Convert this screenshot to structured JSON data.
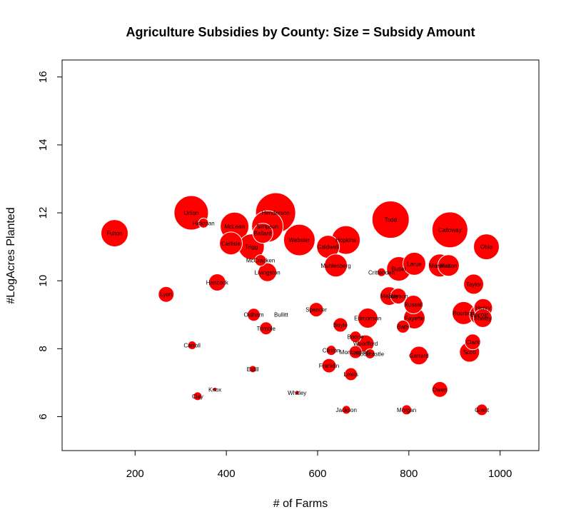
{
  "chart_data": {
    "type": "scatter",
    "title": "Agriculture Subsidies by County: Size = Subsidy Amount",
    "xlabel": "# of Farms",
    "ylabel": "#LogAcres Planted",
    "xlim": [
      40,
      1085
    ],
    "ylim": [
      5,
      16.5
    ],
    "xticks": [
      200,
      400,
      600,
      800,
      1000
    ],
    "yticks": [
      6,
      8,
      10,
      12,
      14,
      16
    ],
    "grid": false,
    "marker_color": "#ff0000",
    "marker_edge_color": "#ffffff",
    "size_encodes": "Subsidy Amount",
    "points": [
      {
        "label": "Fulton",
        "x": 155,
        "y": 11.4,
        "size": 19
      },
      {
        "label": "Union",
        "x": 323,
        "y": 12.0,
        "size": 24
      },
      {
        "label": "Henderson",
        "x": 508,
        "y": 12.0,
        "size": 28
      },
      {
        "label": "Hickman",
        "x": 350,
        "y": 11.7,
        "size": 7
      },
      {
        "label": "McLean",
        "x": 418,
        "y": 11.6,
        "size": 20
      },
      {
        "label": "Simpson",
        "x": 490,
        "y": 11.6,
        "size": 22
      },
      {
        "label": "Ballard",
        "x": 480,
        "y": 11.4,
        "size": 14
      },
      {
        "label": "Webster",
        "x": 560,
        "y": 11.2,
        "size": 22
      },
      {
        "label": "Carlisle",
        "x": 410,
        "y": 11.1,
        "size": 16
      },
      {
        "label": "Trigg",
        "x": 455,
        "y": 11.0,
        "size": 18
      },
      {
        "label": "Caldwell",
        "x": 623,
        "y": 11.0,
        "size": 16
      },
      {
        "label": "Hopkins",
        "x": 662,
        "y": 11.2,
        "size": 20
      },
      {
        "label": "Todd",
        "x": 760,
        "y": 11.8,
        "size": 26
      },
      {
        "label": "Calloway",
        "x": 890,
        "y": 11.5,
        "size": 25
      },
      {
        "label": "Ohio",
        "x": 970,
        "y": 11.0,
        "size": 18
      },
      {
        "label": "McCracken",
        "x": 475,
        "y": 10.6,
        "size": 8
      },
      {
        "label": "Muhlenberg",
        "x": 640,
        "y": 10.45,
        "size": 16
      },
      {
        "label": "Butler",
        "x": 778,
        "y": 10.35,
        "size": 17
      },
      {
        "label": "Larue",
        "x": 812,
        "y": 10.5,
        "size": 16
      },
      {
        "label": "Marshall",
        "x": 868,
        "y": 10.45,
        "size": 16
      },
      {
        "label": "Mason",
        "x": 887,
        "y": 10.45,
        "size": 15
      },
      {
        "label": "Crittenden",
        "x": 740,
        "y": 10.25,
        "size": 6
      },
      {
        "label": "Livingston",
        "x": 490,
        "y": 10.25,
        "size": 13
      },
      {
        "label": "Hancock",
        "x": 380,
        "y": 9.95,
        "size": 12
      },
      {
        "label": "Taylor",
        "x": 942,
        "y": 9.9,
        "size": 14
      },
      {
        "label": "Lyon",
        "x": 268,
        "y": 9.6,
        "size": 11
      },
      {
        "label": "Meade",
        "x": 757,
        "y": 9.55,
        "size": 13
      },
      {
        "label": "Rayson",
        "x": 777,
        "y": 9.55,
        "size": 11
      },
      {
        "label": "Russell",
        "x": 810,
        "y": 9.3,
        "size": 13
      },
      {
        "label": "Spencer",
        "x": 597,
        "y": 9.15,
        "size": 10
      },
      {
        "label": "Henry",
        "x": 963,
        "y": 9.2,
        "size": 13
      },
      {
        "label": "Oldham",
        "x": 460,
        "y": 9.0,
        "size": 9
      },
      {
        "label": "Bullitt",
        "x": 520,
        "y": 9.0,
        "size": 0
      },
      {
        "label": "Edmonson",
        "x": 710,
        "y": 8.9,
        "size": 14
      },
      {
        "label": "Fayette",
        "x": 812,
        "y": 8.9,
        "size": 15
      },
      {
        "label": "Bourbon",
        "x": 920,
        "y": 9.05,
        "size": 16
      },
      {
        "label": "Lincoln",
        "x": 955,
        "y": 9.0,
        "size": 14
      },
      {
        "label": "Shelby",
        "x": 962,
        "y": 8.9,
        "size": 13
      },
      {
        "label": "Boyle",
        "x": 650,
        "y": 8.7,
        "size": 10
      },
      {
        "label": "Trimble",
        "x": 487,
        "y": 8.6,
        "size": 9
      },
      {
        "label": "Bath",
        "x": 787,
        "y": 8.65,
        "size": 9
      },
      {
        "label": "Boone",
        "x": 683,
        "y": 8.35,
        "size": 8
      },
      {
        "label": "Woodford",
        "x": 705,
        "y": 8.15,
        "size": 12
      },
      {
        "label": "Clark",
        "x": 940,
        "y": 8.2,
        "size": 11
      },
      {
        "label": "Carroll",
        "x": 325,
        "y": 8.1,
        "size": 6
      },
      {
        "label": "Clinton",
        "x": 630,
        "y": 7.95,
        "size": 7
      },
      {
        "label": "Montgomery",
        "x": 683,
        "y": 7.9,
        "size": 9
      },
      {
        "label": "Rockcastle",
        "x": 715,
        "y": 7.85,
        "size": 7
      },
      {
        "label": "Garrard",
        "x": 822,
        "y": 7.8,
        "size": 13
      },
      {
        "label": "Scott",
        "x": 933,
        "y": 7.9,
        "size": 14
      },
      {
        "label": "Franklin",
        "x": 625,
        "y": 7.5,
        "size": 10
      },
      {
        "label": "Estill",
        "x": 458,
        "y": 7.4,
        "size": 5
      },
      {
        "label": "Lewis",
        "x": 673,
        "y": 7.25,
        "size": 9
      },
      {
        "label": "Knox",
        "x": 375,
        "y": 6.8,
        "size": 3
      },
      {
        "label": "Whitley",
        "x": 555,
        "y": 6.7,
        "size": 3
      },
      {
        "label": "Owen",
        "x": 868,
        "y": 6.8,
        "size": 11
      },
      {
        "label": "Clay",
        "x": 337,
        "y": 6.6,
        "size": 6
      },
      {
        "label": "Jackson",
        "x": 663,
        "y": 6.2,
        "size": 6
      },
      {
        "label": "Morgan",
        "x": 795,
        "y": 6.2,
        "size": 7
      },
      {
        "label": "Grant",
        "x": 960,
        "y": 6.2,
        "size": 8
      }
    ]
  }
}
